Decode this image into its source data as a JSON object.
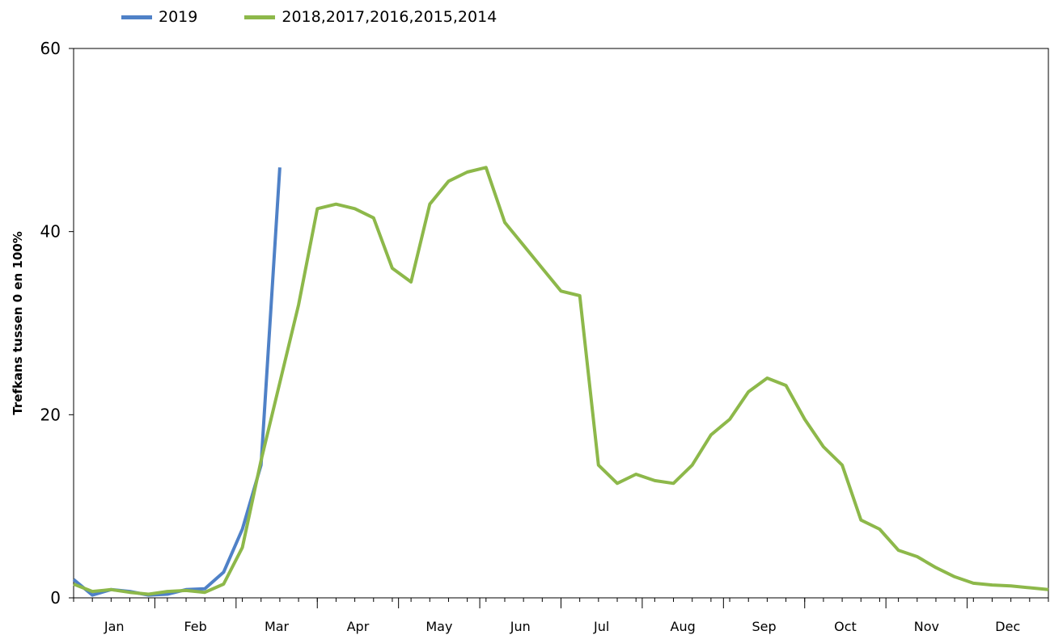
{
  "chart_data": {
    "type": "line",
    "title": "",
    "xlabel": "",
    "ylabel": "Trefkans tussen 0 en 100%",
    "ylim": [
      0,
      60
    ],
    "yticks": [
      0,
      20,
      40,
      60
    ],
    "months": [
      "Jan",
      "Feb",
      "Mar",
      "Apr",
      "May",
      "Jun",
      "Jul",
      "Aug",
      "Sep",
      "Oct",
      "Nov",
      "Dec"
    ],
    "x_unit": "week",
    "grid": false,
    "legend_position": "top-left",
    "series": [
      {
        "name": "2019",
        "color": "#4f81c7",
        "x": [
          1,
          2,
          3,
          4,
          5,
          6,
          7,
          8,
          9,
          10,
          11,
          12,
          13
        ],
        "values": [
          2.0,
          0.3,
          0.9,
          0.7,
          0.3,
          0.4,
          0.9,
          1.0,
          2.8,
          7.5,
          14.5,
          47.0,
          null
        ]
      },
      {
        "name": "2018,2017,2016,2015,2014",
        "color": "#8db84a",
        "x": [
          1,
          2,
          3,
          4,
          5,
          6,
          7,
          8,
          9,
          10,
          11,
          12,
          13,
          14,
          15,
          16,
          17,
          18,
          19,
          20,
          21,
          22,
          23,
          24,
          25,
          26,
          27,
          28,
          29,
          30,
          31,
          32,
          33,
          34,
          35,
          36,
          37,
          38,
          39,
          40,
          41,
          42,
          43,
          44,
          45,
          46,
          47,
          48,
          49,
          50,
          51,
          52,
          53
        ],
        "values": [
          1.5,
          0.7,
          0.9,
          0.6,
          0.4,
          0.7,
          0.8,
          0.6,
          1.5,
          5.5,
          15.0,
          23.5,
          32.0,
          42.5,
          43.0,
          42.5,
          41.5,
          36.0,
          34.5,
          43.0,
          45.5,
          46.5,
          47.0,
          41.0,
          38.5,
          36.0,
          33.5,
          33.0,
          14.5,
          12.5,
          13.5,
          12.8,
          12.5,
          14.5,
          17.8,
          19.5,
          22.5,
          24.0,
          23.2,
          19.5,
          16.5,
          14.5,
          8.5,
          7.5,
          5.2,
          4.5,
          3.3,
          2.3,
          1.6,
          1.4,
          1.3,
          1.1,
          0.9
        ]
      }
    ]
  }
}
